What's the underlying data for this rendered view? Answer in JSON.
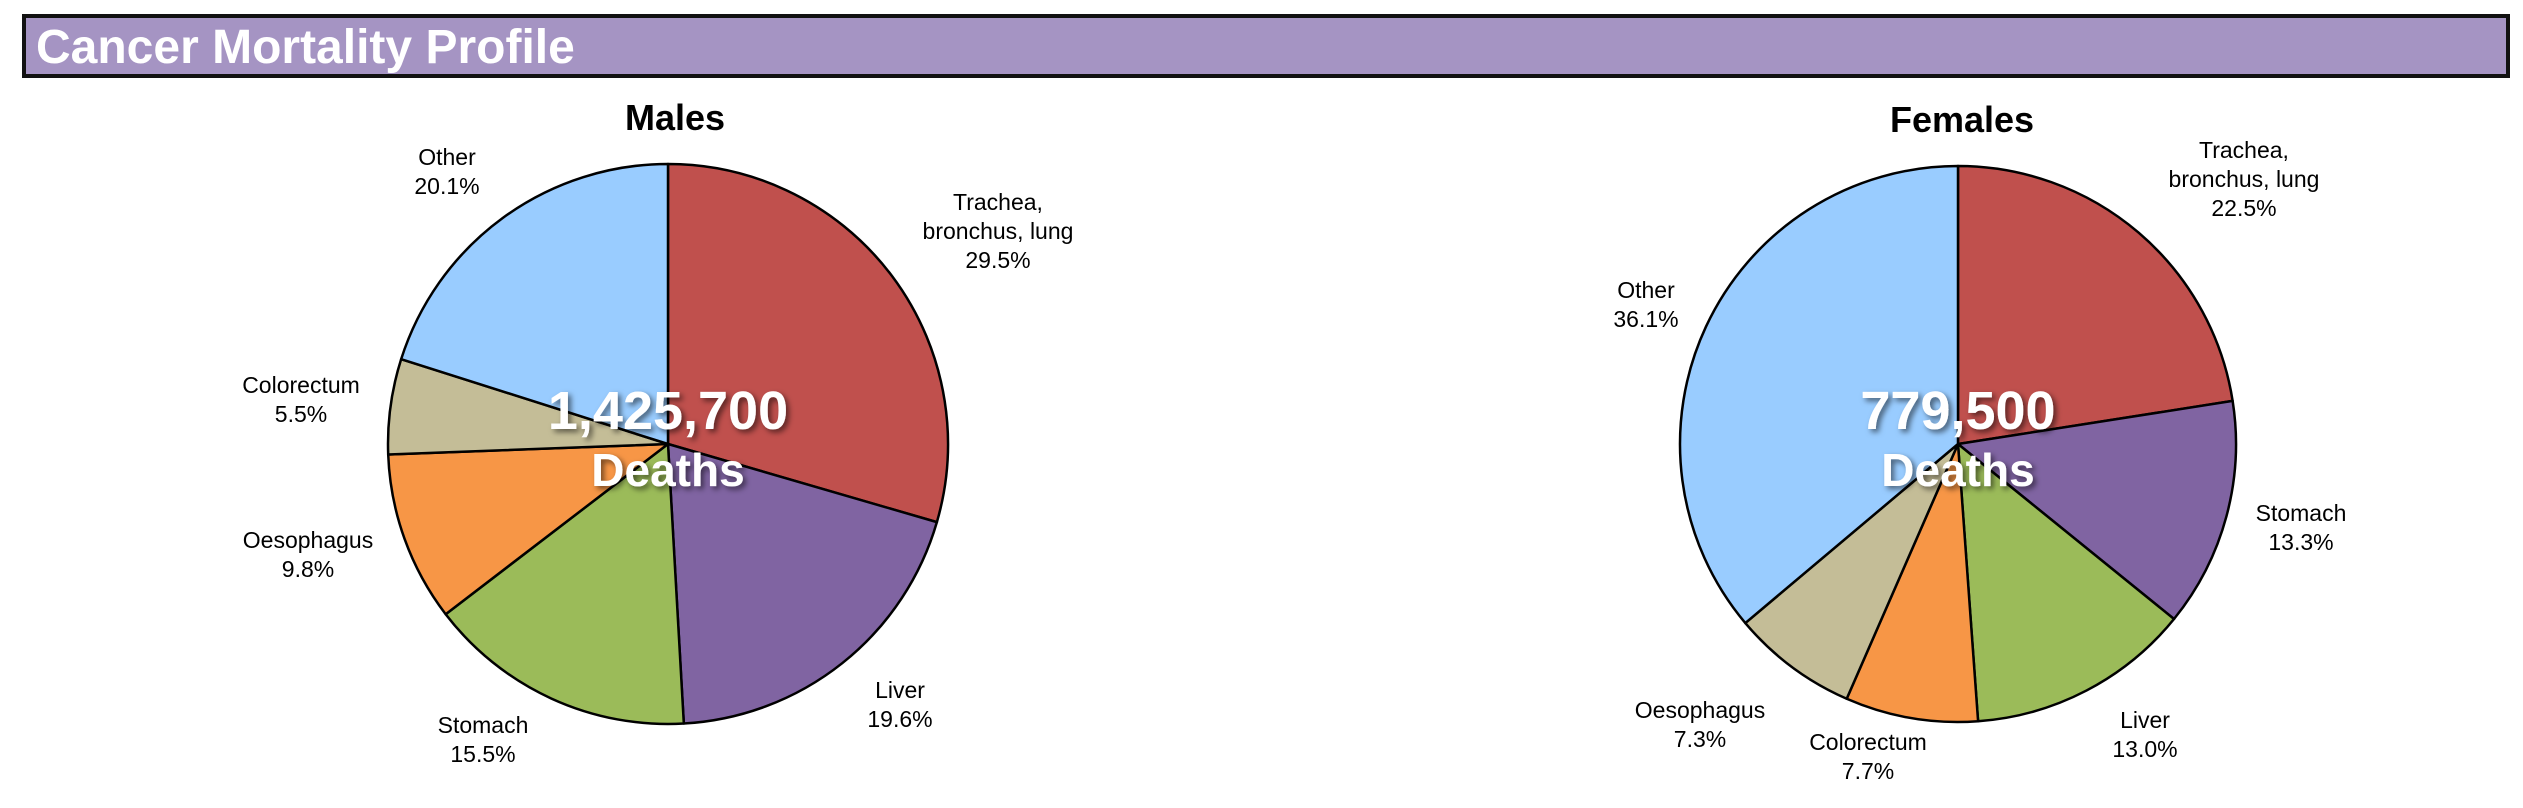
{
  "header": {
    "title": "Cancer Mortality Profile",
    "background": "#a594c3"
  },
  "chart_data": [
    {
      "type": "pie",
      "title": "Males",
      "center_value": "1,425,700",
      "center_label": "Deaths",
      "slices": [
        {
          "name": [
            "Trachea,",
            "bronchus, lung"
          ],
          "value": 29.5,
          "label": "29.5%",
          "color": "#c0504d"
        },
        {
          "name": [
            "Liver"
          ],
          "value": 19.6,
          "label": "19.6%",
          "color": "#8064a2"
        },
        {
          "name": [
            "Stomach"
          ],
          "value": 15.5,
          "label": "15.5%",
          "color": "#9bbb59"
        },
        {
          "name": [
            "Oesophagus"
          ],
          "value": 9.8,
          "label": "9.8%",
          "color": "#f79646"
        },
        {
          "name": [
            "Colorectum"
          ],
          "value": 5.5,
          "label": "5.5%",
          "color": "#c4bd97"
        },
        {
          "name": [
            "Other"
          ],
          "value": 20.1,
          "label": "20.1%",
          "color": "#99ccff"
        }
      ]
    },
    {
      "type": "pie",
      "title": "Females",
      "center_value": "779,500",
      "center_label": "Deaths",
      "slices": [
        {
          "name": [
            "Trachea,",
            "bronchus, lung"
          ],
          "value": 22.5,
          "label": "22.5%",
          "color": "#c0504d"
        },
        {
          "name": [
            "Stomach"
          ],
          "value": 13.3,
          "label": "13.3%",
          "color": "#8064a2"
        },
        {
          "name": [
            "Liver"
          ],
          "value": 13.0,
          "label": "13.0%",
          "color": "#9bbb59"
        },
        {
          "name": [
            "Colorectum"
          ],
          "value": 7.7,
          "label": "7.7%",
          "color": "#f79646"
        },
        {
          "name": [
            "Oesophagus"
          ],
          "value": 7.3,
          "label": "7.3%",
          "color": "#c4bd97"
        },
        {
          "name": [
            "Other"
          ],
          "value": 36.1,
          "label": "36.1%",
          "color": "#99ccff"
        }
      ]
    }
  ]
}
